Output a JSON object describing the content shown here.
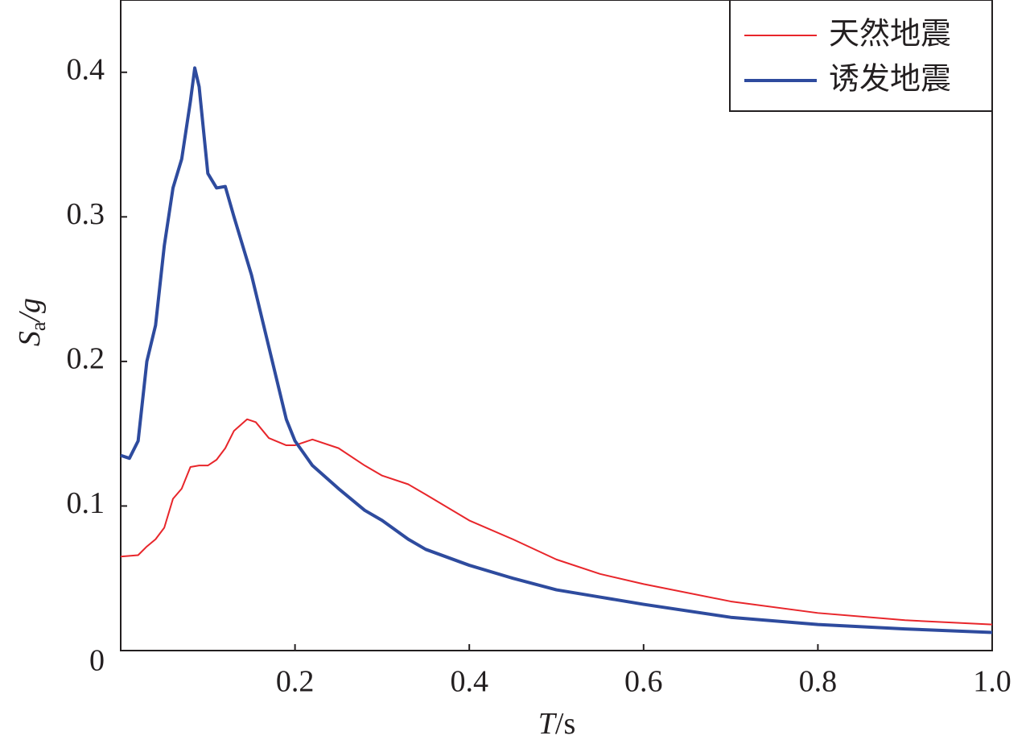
{
  "chart_data": {
    "type": "line",
    "y_label": {
      "base": "S",
      "subscript": "a",
      "rest": "/g"
    },
    "x_label": {
      "italic": "T",
      "rest": "/s"
    },
    "xlim": [
      0,
      1
    ],
    "ylim": [
      0,
      0.45
    ],
    "xticks": [
      0.2,
      0.4,
      0.6,
      0.8,
      {
        "value": 1,
        "label": "1.0"
      }
    ],
    "yticks": [
      0,
      0.1,
      0.2,
      0.3,
      0.4
    ],
    "legend": "upper right",
    "series": [
      {
        "name": "天然地震",
        "color": "#e8262b",
        "x": [
          0,
          0.02,
          0.03,
          0.04,
          0.05,
          0.06,
          0.07,
          0.08,
          0.09,
          0.1,
          0.11,
          0.12,
          0.13,
          0.145,
          0.155,
          0.17,
          0.19,
          0.2,
          0.22,
          0.25,
          0.28,
          0.3,
          0.33,
          0.35,
          0.4,
          0.45,
          0.5,
          0.55,
          0.6,
          0.7,
          0.8,
          0.9,
          1
        ],
        "values": [
          0.065,
          0.066,
          0.072,
          0.077,
          0.085,
          0.105,
          0.112,
          0.127,
          0.128,
          0.128,
          0.132,
          0.14,
          0.152,
          0.16,
          0.158,
          0.147,
          0.142,
          0.142,
          0.146,
          0.14,
          0.128,
          0.121,
          0.115,
          0.108,
          0.09,
          0.077,
          0.063,
          0.053,
          0.046,
          0.034,
          0.026,
          0.021,
          0.018
        ]
      },
      {
        "name": "诱发地震",
        "color": "#2e4b9e",
        "x": [
          0,
          0.01,
          0.02,
          0.03,
          0.04,
          0.05,
          0.06,
          0.07,
          0.08,
          0.085,
          0.09,
          0.1,
          0.11,
          0.12,
          0.13,
          0.15,
          0.17,
          0.19,
          0.2,
          0.22,
          0.25,
          0.28,
          0.3,
          0.33,
          0.35,
          0.4,
          0.45,
          0.5,
          0.55,
          0.6,
          0.7,
          0.8,
          0.9,
          1
        ],
        "values": [
          0.135,
          0.133,
          0.145,
          0.2,
          0.225,
          0.28,
          0.32,
          0.34,
          0.38,
          0.403,
          0.39,
          0.33,
          0.32,
          0.321,
          0.3,
          0.26,
          0.21,
          0.16,
          0.145,
          0.128,
          0.112,
          0.097,
          0.09,
          0.077,
          0.07,
          0.059,
          0.05,
          0.042,
          0.037,
          0.032,
          0.023,
          0.018,
          0.015,
          0.0125
        ]
      }
    ]
  }
}
